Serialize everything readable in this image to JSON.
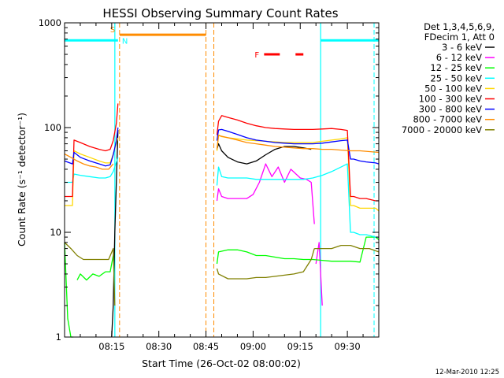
{
  "chart_data": {
    "type": "line",
    "title": "HESSI Observing Summary Count Rates",
    "xlabel": "Start Time (26-Oct-02 08:00:02)",
    "ylabel": "Count Rate (s⁻¹ detector⁻¹)",
    "ylog": true,
    "xlim_minutes": [
      0,
      100
    ],
    "ylim": [
      1,
      1000
    ],
    "x_ticks": [
      {
        "minute": 15,
        "label": "08:15"
      },
      {
        "minute": 30,
        "label": "08:30"
      },
      {
        "minute": 45,
        "label": "08:45"
      },
      {
        "minute": 60,
        "label": "09:00"
      },
      {
        "minute": 75,
        "label": "09:15"
      },
      {
        "minute": 90,
        "label": "09:30"
      }
    ],
    "y_ticks": [
      {
        "value": 1,
        "label": "1"
      },
      {
        "value": 10,
        "label": "10"
      },
      {
        "value": 100,
        "label": "100"
      },
      {
        "value": 1000,
        "label": "1000"
      }
    ],
    "legend": {
      "header": [
        "Det 1,3,4,5,6,9,",
        "FDecim 1, Att 0"
      ],
      "placement": "right"
    },
    "series": [
      {
        "name": "3 - 6 keV",
        "color": "#000000",
        "segments": [
          {
            "x": [
              15.0,
              15.5,
              16.0,
              17.0
            ],
            "y": [
              1,
              2,
              10,
              95
            ]
          },
          {
            "x": [
              48.5,
              49,
              50,
              52,
              55,
              58,
              61,
              64,
              67,
              70,
              73,
              76,
              78.5
            ],
            "y": [
              62,
              70,
              60,
              52,
              47,
              45,
              48,
              55,
              62,
              66,
              66,
              64,
              62
            ]
          }
        ]
      },
      {
        "name": "6 - 12 keV",
        "color": "#ff00ff",
        "segments": [
          {
            "x": [
              48.5,
              49,
              50,
              52,
              55,
              58,
              60,
              62,
              64,
              66,
              68,
              70,
              72,
              75,
              77,
              78.5,
              79.5
            ],
            "y": [
              20,
              26,
              22,
              21,
              21,
              21,
              23,
              30,
              45,
              34,
              42,
              30,
              40,
              33,
              32,
              30,
              12
            ]
          },
          {
            "x": [
              80,
              81,
              82
            ],
            "y": [
              5,
              8,
              2
            ]
          }
        ]
      },
      {
        "name": "12 - 25 keV",
        "color": "#00ff00",
        "segments": [
          {
            "x": [
              0,
              1,
              2,
              2.8
            ],
            "y": [
              8,
              1.5,
              1,
              1
            ]
          },
          {
            "x": [
              4,
              5,
              7,
              9,
              11,
              13,
              14.5,
              15.5
            ],
            "y": [
              3.5,
              4,
              3.5,
              4,
              3.8,
              4.2,
              4.2,
              6
            ]
          },
          {
            "x": [
              48.5,
              49,
              52,
              55,
              58,
              61,
              64,
              67,
              70,
              73,
              76,
              79,
              82,
              85,
              88,
              91,
              94,
              96,
              99,
              100
            ],
            "y": [
              5,
              6.5,
              6.8,
              6.8,
              6.5,
              6,
              6,
              5.8,
              5.6,
              5.6,
              5.5,
              5.5,
              5.4,
              5.3,
              5.3,
              5.3,
              5.2,
              9,
              9,
              8.5
            ]
          }
        ]
      },
      {
        "name": "25 - 50 keV",
        "color": "#00ffff",
        "segments": [
          {
            "x": [
              0,
              2.5,
              3,
              5,
              8,
              11,
              13,
              14.5,
              15.5,
              17
            ],
            "y": [
              30,
              30,
              36,
              35,
              34,
              33,
              33,
              34,
              38,
              52
            ]
          },
          {
            "x": [
              48.5,
              49,
              50,
              52,
              55,
              58,
              61,
              64,
              67,
              70,
              73,
              76,
              79,
              82,
              85,
              88,
              90,
              91,
              92,
              94,
              96,
              99,
              100
            ],
            "y": [
              28,
              42,
              34,
              33,
              33,
              33,
              32,
              32,
              32,
              32,
              32,
              32,
              33,
              35,
              38,
              42,
              45,
              10,
              10,
              9.5,
              9.5,
              9,
              9
            ]
          }
        ]
      },
      {
        "name": "50 - 100 keV",
        "color": "#ffd700",
        "segments": [
          {
            "x": [
              0,
              2.5,
              3,
              5,
              8,
              11,
              13,
              14.5,
              15.5,
              17
            ],
            "y": [
              18,
              18,
              60,
              56,
              52,
              48,
              46,
              46,
              56,
              80
            ]
          },
          {
            "x": [
              48.5,
              49,
              50,
              52,
              55,
              58,
              61,
              64,
              67,
              70,
              73,
              76,
              79,
              82,
              85,
              88,
              90,
              91,
              92,
              94,
              96,
              99,
              100
            ],
            "y": [
              60,
              85,
              82,
              80,
              78,
              76,
              75,
              74,
              73,
              72,
              72,
              72,
              72,
              74,
              76,
              78,
              80,
              18,
              18,
              17,
              17,
              17,
              16
            ]
          }
        ]
      },
      {
        "name": "100 - 300 keV",
        "color": "#ff0000",
        "segments": [
          {
            "x": [
              0,
              2.5,
              3,
              5,
              8,
              11,
              13,
              14.5,
              15.5,
              16.5,
              17
            ],
            "y": [
              22,
              22,
              76,
              72,
              66,
              62,
              60,
              62,
              75,
              110,
              170
            ]
          },
          {
            "x": [
              48.5,
              49,
              50,
              52,
              55,
              58,
              61,
              64,
              67,
              70,
              73,
              76,
              79,
              82,
              85,
              88,
              90,
              91,
              92,
              94,
              96,
              99,
              100
            ],
            "y": [
              85,
              115,
              130,
              125,
              118,
              110,
              104,
              100,
              98,
              97,
              96,
              96,
              96,
              97,
              98,
              96,
              94,
              22,
              22,
              21,
              21,
              20,
              20
            ]
          }
        ]
      },
      {
        "name": "300 - 800 keV",
        "color": "#0000ff",
        "segments": [
          {
            "x": [
              0,
              2.5,
              3,
              5,
              8,
              11,
              13,
              14.5,
              15.5,
              16.5,
              17
            ],
            "y": [
              48,
              45,
              58,
              52,
              48,
              45,
              43,
              44,
              55,
              75,
              100
            ]
          },
          {
            "x": [
              48.5,
              49,
              50,
              52,
              55,
              58,
              61,
              64,
              67,
              70,
              73,
              76,
              79,
              82,
              85,
              88,
              90,
              91,
              92,
              94,
              96,
              99,
              100
            ],
            "y": [
              75,
              95,
              96,
              92,
              86,
              80,
              76,
              74,
              72,
              71,
              70,
              70,
              70,
              71,
              73,
              75,
              76,
              50,
              50,
              48,
              47,
              46,
              45
            ]
          }
        ]
      },
      {
        "name": "800 - 7000 keV",
        "color": "#ff8c00",
        "segments": [
          {
            "x": [
              0,
              2,
              4,
              6,
              8,
              10,
              12,
              14,
              15.5
            ],
            "y": [
              56,
              52,
              48,
              45,
              43,
              42,
              40,
              40,
              45
            ]
          },
          {
            "x": [
              48.5,
              49,
              52,
              55,
              58,
              61,
              64,
              67,
              70,
              73,
              76,
              79,
              82,
              85,
              88,
              91,
              94,
              97,
              100
            ],
            "y": [
              62,
              84,
              80,
              76,
              72,
              70,
              68,
              66,
              65,
              64,
              63,
              63,
              62,
              62,
              61,
              60,
              60,
              59,
              58
            ]
          }
        ]
      },
      {
        "name": "7000 - 20000 keV",
        "color": "#808000",
        "segments": [
          {
            "x": [
              0,
              2,
              4,
              6,
              8,
              10,
              12,
              14,
              15.5,
              16
            ],
            "y": [
              8,
              7,
              6,
              5.5,
              5.5,
              5.5,
              5.5,
              5.5,
              7,
              2
            ]
          },
          {
            "x": [
              48.5,
              49,
              52,
              55,
              58,
              61,
              64,
              67,
              70,
              73,
              76,
              78.5,
              79.5
            ],
            "y": [
              4.5,
              4,
              3.6,
              3.6,
              3.6,
              3.7,
              3.7,
              3.8,
              3.9,
              4.0,
              4.2,
              5.5,
              7
            ]
          },
          {
            "x": [
              79.5,
              82,
              85,
              88,
              91,
              94,
              97,
              100
            ],
            "y": [
              7,
              7,
              7,
              7.5,
              7.5,
              7,
              7,
              6.5
            ]
          }
        ]
      }
    ],
    "annotations": {
      "saa": {
        "label": "S",
        "color": "#ff8c00",
        "start_minute": 17.5,
        "end_minute": 45,
        "level": 770
      },
      "night": {
        "label": "N",
        "color": "#00ffff",
        "start_minute": 17.5,
        "level": 680
      },
      "night_before": {
        "color": "#00ffff",
        "start_minute": 0,
        "end_minute": 17,
        "level": 680
      },
      "night_after": {
        "color": "#00ffff",
        "start_minute": 81.5,
        "end_minute": 100,
        "level": 680
      },
      "flare": {
        "label": "F",
        "color": "#ff0000",
        "segments": [
          [
            63.5,
            68.5
          ],
          [
            73.5,
            76
          ]
        ],
        "level": 500
      },
      "orange_dashed_at": [
        17.5,
        45,
        47.5
      ],
      "cyan_dashed_at": [
        98.5
      ],
      "cyan_solid_at": [
        16,
        81.5
      ]
    },
    "footer": "12-Mar-2010 12:25"
  }
}
